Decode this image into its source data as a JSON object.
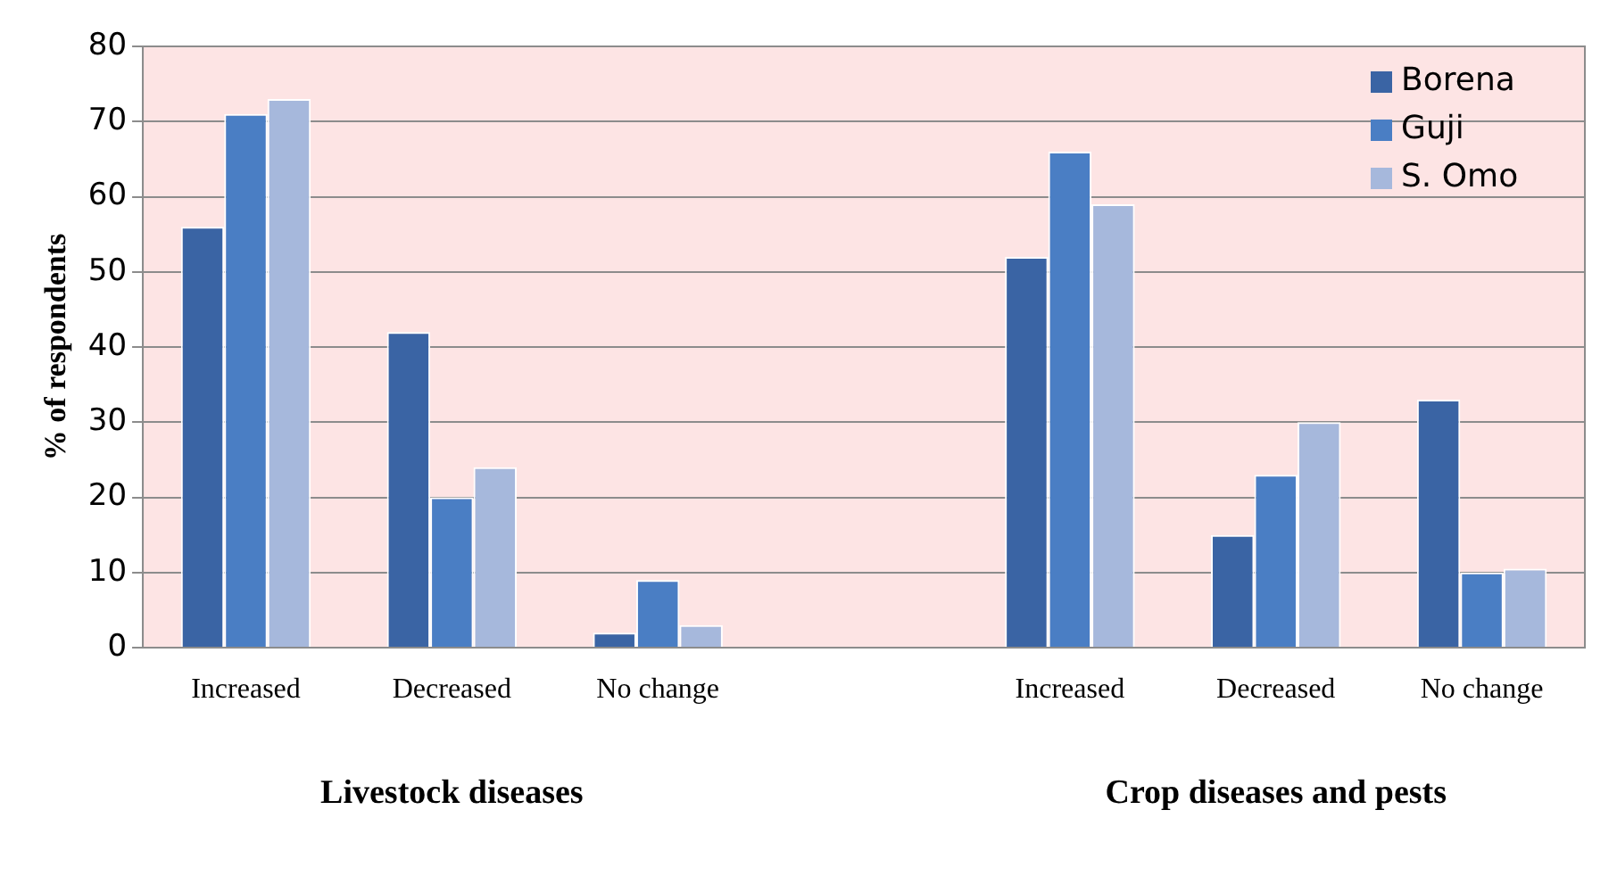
{
  "chart_data": {
    "type": "bar",
    "ylabel": "% of respondents",
    "categories": [
      "Increased",
      "Decreased",
      "No change",
      null,
      "Increased",
      "Decreased",
      "No change"
    ],
    "series": [
      {
        "name": "Borena",
        "color": "#3a64a4",
        "values": [
          56,
          42,
          2,
          null,
          52,
          15,
          33
        ]
      },
      {
        "name": "Guji",
        "color": "#4a7ec4",
        "values": [
          71,
          20,
          9,
          null,
          66,
          23,
          10
        ]
      },
      {
        "name": "S. Omo",
        "color": "#a6b8dc",
        "values": [
          73,
          24,
          3,
          null,
          59,
          30,
          10.5
        ]
      }
    ],
    "ylim": [
      0,
      80
    ],
    "yticks": [
      0,
      10,
      20,
      30,
      40,
      50,
      60,
      70,
      80
    ],
    "grid": "y",
    "legend": "top right",
    "annotations": [
      "Livestock diseases",
      "Crop diseases and pests"
    ]
  }
}
